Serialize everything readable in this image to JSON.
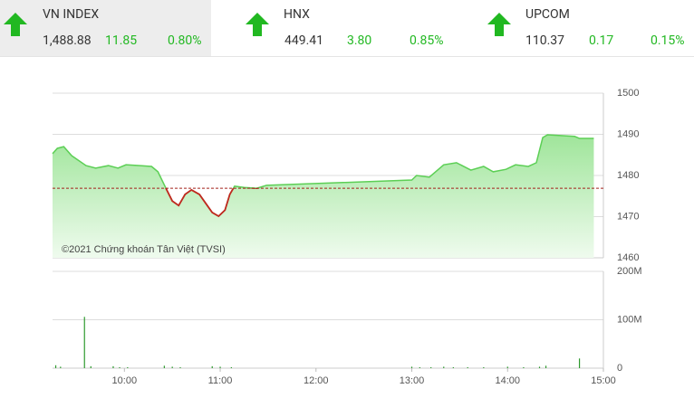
{
  "indices": [
    {
      "name": "VN INDEX",
      "value": "1,488.88",
      "change": "11.85",
      "percent": "0.80%"
    },
    {
      "name": "HNX",
      "value": "449.41",
      "change": "3.80",
      "percent": "0.85%"
    },
    {
      "name": "UPCOM",
      "value": "110.37",
      "change": "0.17",
      "percent": "0.15%"
    }
  ],
  "chart_data": [
    {
      "type": "area",
      "x": [
        555,
        558,
        562,
        567,
        576,
        582,
        590,
        596,
        601,
        610,
        617,
        621,
        626,
        630,
        634,
        638,
        642,
        647,
        651,
        655,
        659,
        663,
        666,
        669,
        675,
        683,
        689,
        780,
        783,
        791,
        800,
        808,
        817,
        825,
        831,
        839,
        845,
        853,
        858,
        862,
        865,
        882,
        885,
        894
      ],
      "values": [
        1485.3,
        1486.6,
        1487.0,
        1484.8,
        1482.4,
        1481.8,
        1482.4,
        1481.8,
        1482.6,
        1482.4,
        1482.2,
        1480.9,
        1476.9,
        1473.8,
        1472.7,
        1475.4,
        1476.5,
        1475.4,
        1473.2,
        1471.0,
        1470.1,
        1471.6,
        1475.4,
        1477.4,
        1477.1,
        1476.9,
        1477.6,
        1478.9,
        1480.0,
        1479.6,
        1482.6,
        1483.1,
        1481.3,
        1482.2,
        1480.9,
        1481.5,
        1482.6,
        1482.2,
        1483.1,
        1489.2,
        1489.9,
        1489.5,
        1489.0,
        1489.0
      ],
      "color": "#5ccf55",
      "below_color": "#c0281f",
      "reference": 1476.9,
      "reference_color": "#a3201a",
      "xlim": [
        555,
        900
      ],
      "ylim": [
        1460,
        1500
      ],
      "yticks": [
        1460,
        1470,
        1480,
        1490,
        1500
      ],
      "grid": true,
      "annotation": "©2021 Chứng khoán Tân Việt (TVSI)"
    },
    {
      "type": "bar",
      "x": [
        557,
        560,
        575,
        579,
        593,
        597,
        602,
        625,
        630,
        635,
        655,
        660,
        667,
        780,
        785,
        792,
        800,
        806,
        815,
        825,
        840,
        850,
        860,
        864,
        885
      ],
      "values": [
        6000000,
        3000000,
        106000000,
        4000000,
        4000000,
        2000000,
        2000000,
        5000000,
        3000000,
        2000000,
        4000000,
        3000000,
        2000000,
        3000000,
        2000000,
        2000000,
        3000000,
        2000000,
        2000000,
        2000000,
        3000000,
        2000000,
        3000000,
        5000000,
        20000000
      ],
      "color": "#2f9a2f",
      "xlim": [
        555,
        900
      ],
      "ylim": [
        0,
        200000000
      ],
      "yticks": [
        0,
        {
          "value": 100000000,
          "label": "100M"
        },
        {
          "value": 200000000,
          "label": "200M"
        }
      ],
      "xticks": [
        {
          "value": 600,
          "label": "10:00"
        },
        {
          "value": 660,
          "label": "11:00"
        },
        {
          "value": 720,
          "label": "12:00"
        },
        {
          "value": 780,
          "label": "13:00"
        },
        {
          "value": 840,
          "label": "14:00"
        },
        {
          "value": 900,
          "label": "15:00"
        }
      ],
      "grid": true
    }
  ]
}
